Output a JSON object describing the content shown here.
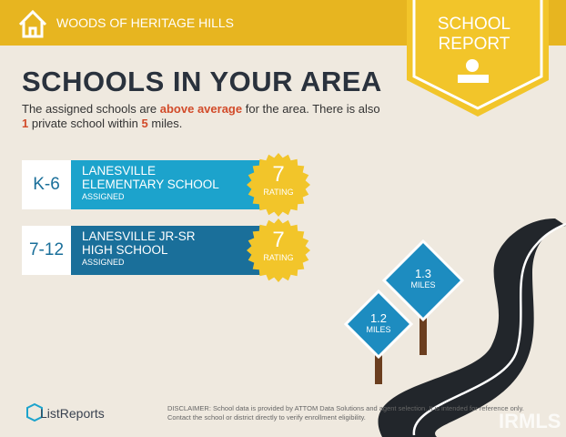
{
  "header": {
    "community": "WOODS OF HERITAGE HILLS",
    "badge_top": "SCHOOL",
    "badge_bottom": "REPORT"
  },
  "title": "SCHOOLS IN YOUR AREA",
  "intro": {
    "part1": "The assigned schools are ",
    "highlight": "above average",
    "part2": " for the area. There is also ",
    "private_count": "1",
    "part3": " private school within ",
    "radius": "5",
    "part4": " miles."
  },
  "schools": [
    {
      "grades": "K-6",
      "name": "LANESVILLE ELEMENTARY SCHOOL",
      "status": "ASSIGNED",
      "rating": 7,
      "rating_label": "RATING"
    },
    {
      "grades": "7-12",
      "name": "LANESVILLE JR-SR HIGH SCHOOL",
      "status": "ASSIGNED",
      "rating": 7,
      "rating_label": "RATING"
    }
  ],
  "signs": [
    {
      "distance": "1.2",
      "unit": "MILES"
    },
    {
      "distance": "1.3",
      "unit": "MILES"
    }
  ],
  "footer": {
    "brand": "ListReports",
    "disclaimer": "DISCLAIMER: School data is provided by ATTOM Data Solutions and agent selection. It is intended for reference only. Contact the school or district directly to verify enrollment eligibility.",
    "watermark": "IRMLS"
  }
}
